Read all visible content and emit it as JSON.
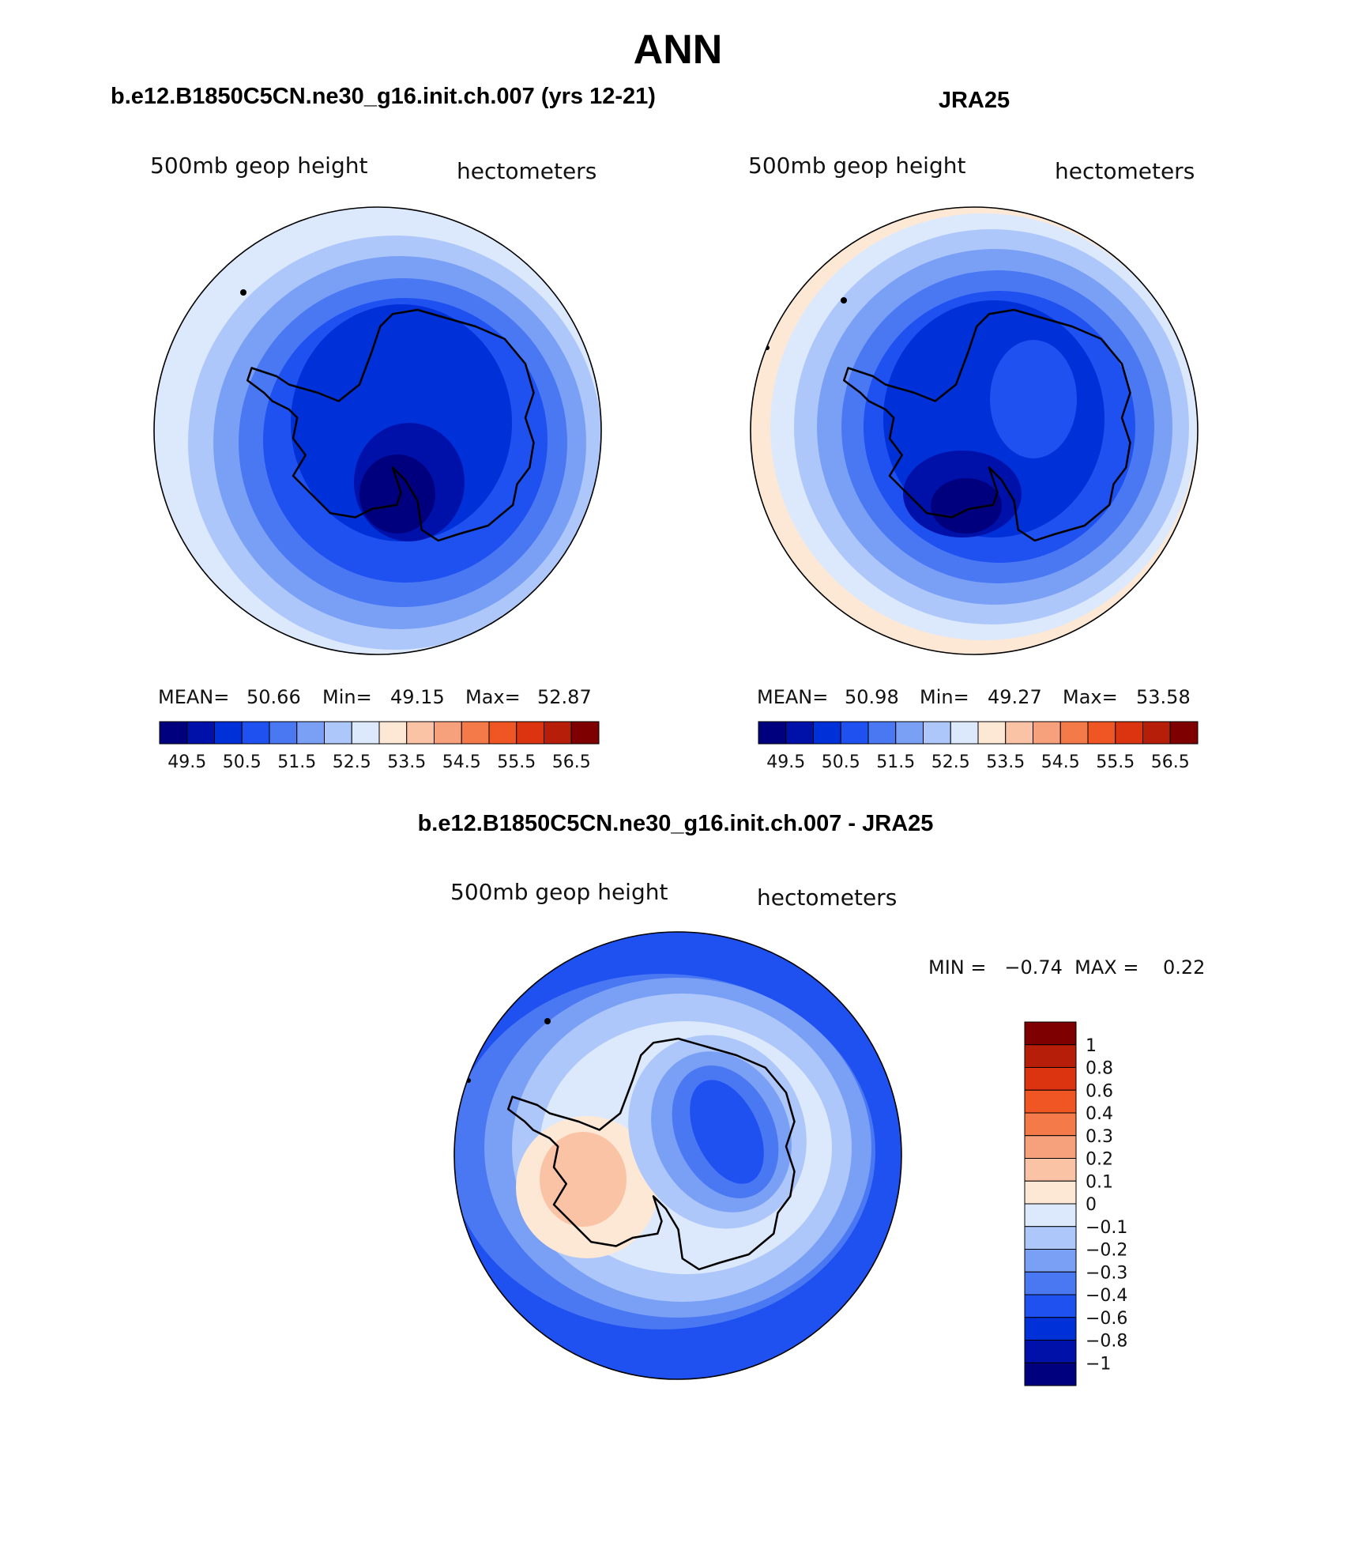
{
  "title": "ANN",
  "colors": {
    "abs_scale": [
      "#00007f",
      "#0011aa",
      "#0030d8",
      "#1f50f0",
      "#4a78f2",
      "#7aa0f6",
      "#aec7fa",
      "#dce9fc",
      "#fde8d6",
      "#fbc3a6",
      "#f6a07c",
      "#f57a49",
      "#f05624",
      "#dc3410",
      "#b71e0a",
      "#7f0000"
    ],
    "diff_scale": [
      "#00007f",
      "#0011aa",
      "#0030d8",
      "#1f50f0",
      "#4a78f2",
      "#7aa0f6",
      "#aec7fa",
      "#dce9fc",
      "#fde8d6",
      "#fbc3a6",
      "#f6a07c",
      "#f57a49",
      "#f05624",
      "#dc3410",
      "#b71e0a",
      "#7f0000"
    ]
  },
  "panels": [
    {
      "id": "model",
      "title": "b.e12.B1850C5CN.ne30_g16.init.ch.007 (yrs 12-21)",
      "field_label": "500mb geop height",
      "units": "hectometers",
      "stats": {
        "mean_label": "MEAN=",
        "mean": "50.66",
        "min_label": "Min=",
        "min": "49.15",
        "max_label": "Max=",
        "max": "52.87"
      },
      "colorbar_ticks": [
        "49.5",
        "50.5",
        "51.5",
        "52.5",
        "53.5",
        "54.5",
        "55.5",
        "56.5"
      ]
    },
    {
      "id": "obs",
      "title": "JRA25",
      "field_label": "500mb geop height",
      "units": "hectometers",
      "stats": {
        "mean_label": "MEAN=",
        "mean": "50.98",
        "min_label": "Min=",
        "min": "49.27",
        "max_label": "Max=",
        "max": "53.58"
      },
      "colorbar_ticks": [
        "49.5",
        "50.5",
        "51.5",
        "52.5",
        "53.5",
        "54.5",
        "55.5",
        "56.5"
      ]
    },
    {
      "id": "diff",
      "title": "b.e12.B1850C5CN.ne30_g16.init.ch.007 - JRA25",
      "field_label": "500mb geop height",
      "units": "hectometers",
      "stats_text": "MIN =   −0.74  MAX =    0.22",
      "colorbar_ticks": [
        "1",
        "0.8",
        "0.6",
        "0.4",
        "0.3",
        "0.2",
        "0.1",
        "0",
        "−0.1",
        "−0.2",
        "−0.3",
        "−0.4",
        "−0.6",
        "−0.8",
        "−1"
      ]
    }
  ]
}
